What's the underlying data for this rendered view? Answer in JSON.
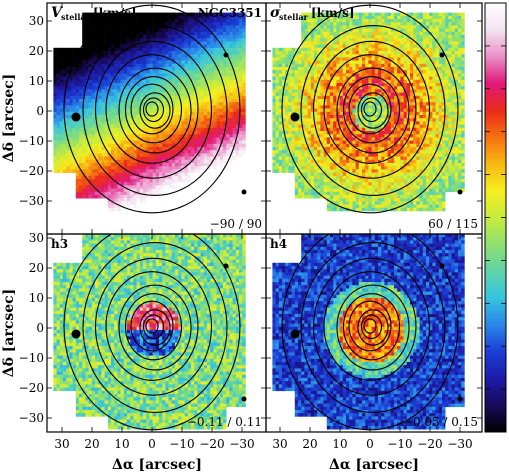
{
  "figure": {
    "galaxy": "NGC3351",
    "xlabel": "Δα [arcsec]",
    "ylabel": "Δδ [arcsec]"
  },
  "colors": {
    "colormap": [
      "#000000",
      "#1a0a5a",
      "#1c1ca8",
      "#1a3fd6",
      "#2a86e8",
      "#35c5e0",
      "#5fd4a8",
      "#8fe070",
      "#c8ec3c",
      "#f5ee20",
      "#f8b810",
      "#f57012",
      "#ea2a1a",
      "#e0187a",
      "#ec8fc8",
      "#f2e4ef",
      "#ffffff"
    ],
    "contour": "#000000"
  },
  "chart_data": [
    {
      "type": "heatmap",
      "panel": "top-left",
      "title": "V_stellar [km/s]",
      "title_main": "V",
      "title_sub": "stellar",
      "title_unit": "[km/s]",
      "annotation": "NGC3351",
      "range_label": "−90 / 90",
      "range": [
        -90,
        90
      ],
      "pattern": "velocity",
      "xlim": [
        35,
        -35
      ],
      "ylim": [
        -35,
        35
      ],
      "xticks": [
        30,
        20,
        10,
        0,
        -10,
        -20,
        -30
      ],
      "yticks": [
        30,
        20,
        10,
        0,
        -10,
        -20,
        -30
      ]
    },
    {
      "type": "heatmap",
      "panel": "top-right",
      "title": "σ_stellar [km/s]",
      "title_main": "σ",
      "title_sub": "stellar",
      "title_unit": "[km/s]",
      "range_label": "60 / 115",
      "range": [
        60,
        115
      ],
      "pattern": "dispersion",
      "xlim": [
        35,
        -35
      ],
      "ylim": [
        -35,
        35
      ]
    },
    {
      "type": "heatmap",
      "panel": "bottom-left",
      "title": "h3",
      "range_label": "−0.11 / 0.11",
      "range": [
        -0.11,
        0.11
      ],
      "pattern": "h3",
      "xlim": [
        35,
        -35
      ],
      "ylim": [
        -35,
        35
      ]
    },
    {
      "type": "heatmap",
      "panel": "bottom-right",
      "title": "h4",
      "range_label": "−0.05 / 0.15",
      "range": [
        -0.05,
        0.15
      ],
      "pattern": "h4",
      "xlim": [
        35,
        -35
      ],
      "ylim": [
        -35,
        35
      ]
    }
  ],
  "axes": {
    "x_ticks": [
      "30",
      "20",
      "10",
      "0",
      "−10",
      "−20",
      "−30"
    ],
    "y_ticks": [
      "30",
      "20",
      "10",
      "0",
      "−10",
      "−20",
      "−30"
    ]
  }
}
